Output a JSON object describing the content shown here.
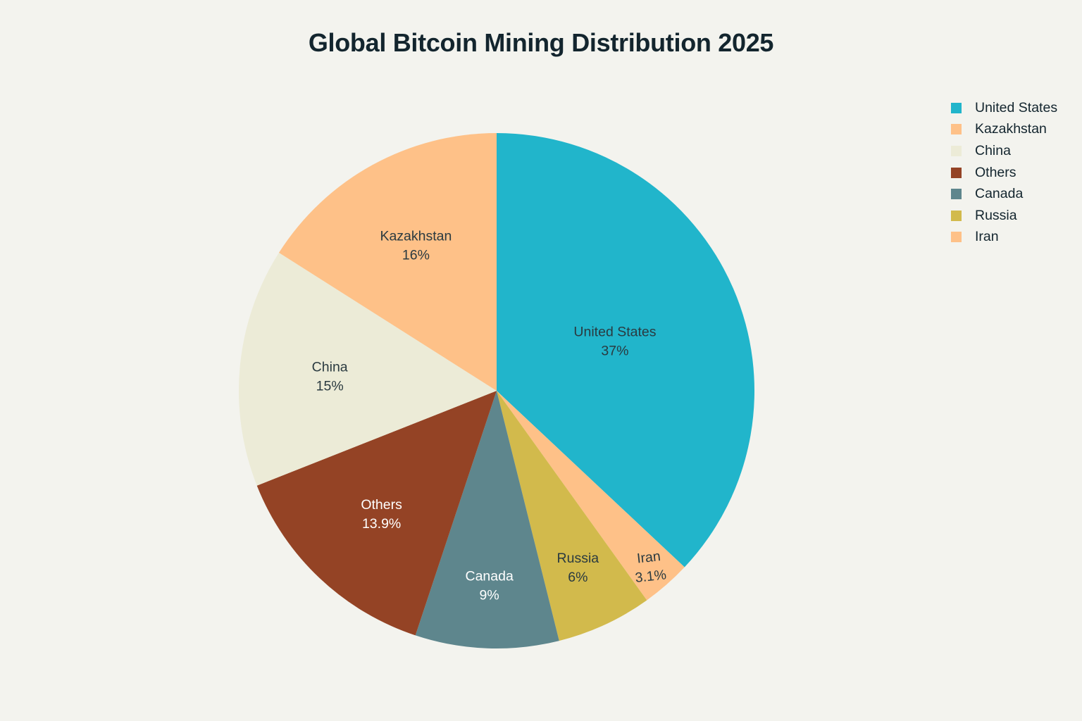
{
  "title": "Global Bitcoin Mining Distribution 2025",
  "chart_data": {
    "type": "pie",
    "title": "Global Bitcoin Mining Distribution 2025",
    "start_angle": "12 o'clock",
    "direction": "clockwise",
    "slices": [
      {
        "label": "United States",
        "value": 37,
        "display": "37%",
        "color": "#21b5cb",
        "text_color": "#2a3a40"
      },
      {
        "label": "Iran",
        "value": 3.1,
        "display": "3.1%",
        "color": "#fec188",
        "text_color": "#2a3a40",
        "rotated": true
      },
      {
        "label": "Russia",
        "value": 6,
        "display": "6%",
        "color": "#d2ba4c",
        "text_color": "#2a3a40"
      },
      {
        "label": "Canada",
        "value": 9,
        "display": "9%",
        "color": "#5e868d",
        "text_color": "#ffffff"
      },
      {
        "label": "Others",
        "value": 13.9,
        "display": "13.9%",
        "color": "#944325",
        "text_color": "#ffffff"
      },
      {
        "label": "China",
        "value": 15,
        "display": "15%",
        "color": "#ecebd7",
        "text_color": "#2a3a40"
      },
      {
        "label": "Kazakhstan",
        "value": 16,
        "display": "16%",
        "color": "#fec188",
        "text_color": "#2a3a40"
      }
    ],
    "legend": {
      "position": "top-right",
      "entries": [
        {
          "label": "United States",
          "color": "#21b5cb"
        },
        {
          "label": "Kazakhstan",
          "color": "#fec188"
        },
        {
          "label": "China",
          "color": "#ecebd7"
        },
        {
          "label": "Others",
          "color": "#944325"
        },
        {
          "label": "Canada",
          "color": "#5e868d"
        },
        {
          "label": "Russia",
          "color": "#d2ba4c"
        },
        {
          "label": "Iran",
          "color": "#fec188"
        }
      ]
    }
  },
  "background": "#f3f3ee"
}
